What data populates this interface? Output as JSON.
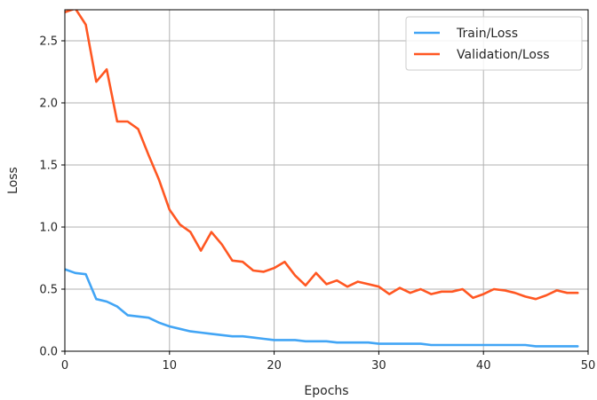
{
  "chart_data": {
    "type": "line",
    "xlabel": "Epochs",
    "ylabel": "Loss",
    "xlim": [
      0,
      50
    ],
    "ylim": [
      0,
      2.75
    ],
    "xticks": [
      0,
      10,
      20,
      30,
      40,
      50
    ],
    "yticks": [
      0.0,
      0.5,
      1.0,
      1.5,
      2.0,
      2.5
    ],
    "grid": true,
    "legend_position": "top-right",
    "x": [
      0,
      1,
      2,
      3,
      4,
      5,
      6,
      7,
      8,
      9,
      10,
      11,
      12,
      13,
      14,
      15,
      16,
      17,
      18,
      19,
      20,
      21,
      22,
      23,
      24,
      25,
      26,
      27,
      28,
      29,
      30,
      31,
      32,
      33,
      34,
      35,
      36,
      37,
      38,
      39,
      40,
      41,
      42,
      43,
      44,
      45,
      46,
      47,
      48,
      49
    ],
    "series": [
      {
        "name": "Train/Loss",
        "color": "#42a5f5",
        "values": [
          0.66,
          0.63,
          0.62,
          0.42,
          0.4,
          0.36,
          0.29,
          0.28,
          0.27,
          0.23,
          0.2,
          0.18,
          0.16,
          0.15,
          0.14,
          0.13,
          0.12,
          0.12,
          0.11,
          0.1,
          0.09,
          0.09,
          0.09,
          0.08,
          0.08,
          0.08,
          0.07,
          0.07,
          0.07,
          0.07,
          0.06,
          0.06,
          0.06,
          0.06,
          0.06,
          0.05,
          0.05,
          0.05,
          0.05,
          0.05,
          0.05,
          0.05,
          0.05,
          0.05,
          0.05,
          0.04,
          0.04,
          0.04,
          0.04,
          0.04
        ]
      },
      {
        "name": "Validation/Loss",
        "color": "#ff5722",
        "values": [
          2.73,
          2.76,
          2.63,
          2.17,
          2.27,
          1.85,
          1.85,
          1.79,
          1.58,
          1.38,
          1.14,
          1.02,
          0.96,
          0.81,
          0.96,
          0.86,
          0.73,
          0.72,
          0.65,
          0.64,
          0.67,
          0.72,
          0.61,
          0.53,
          0.63,
          0.54,
          0.57,
          0.52,
          0.56,
          0.54,
          0.52,
          0.46,
          0.51,
          0.47,
          0.5,
          0.46,
          0.48,
          0.48,
          0.5,
          0.43,
          0.46,
          0.5,
          0.49,
          0.47,
          0.44,
          0.42,
          0.45,
          0.49,
          0.47,
          0.47
        ]
      }
    ]
  }
}
